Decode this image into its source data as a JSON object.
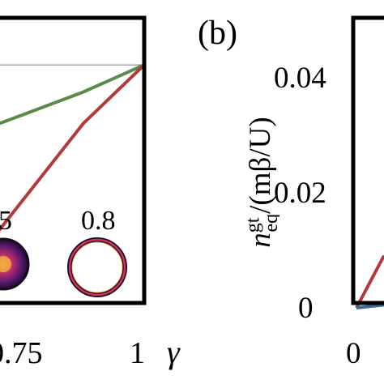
{
  "chart_data": [
    {
      "type": "line",
      "xlabel": "γ",
      "x_ticks": [
        "0.75",
        "1"
      ],
      "series": [
        {
          "color": "#5b8a4a",
          "x": [
            0.75,
            0.875,
            1.0
          ],
          "y": [
            0.66,
            0.74,
            0.835
          ]
        },
        {
          "color": "#b13a3a",
          "x": [
            0.75,
            0.875,
            1.0
          ],
          "y": [
            0.36,
            0.63,
            0.835
          ]
        },
        {
          "color": "#777777",
          "x": [
            0.75,
            1.0
          ],
          "y": [
            0.835,
            0.835
          ]
        }
      ],
      "insets": [
        {
          "label": "5",
          "type": "filled-ring"
        },
        {
          "label": "0.8",
          "type": "thin-ring"
        }
      ]
    },
    {
      "type": "line",
      "panel_label": "(b)",
      "ylabel_html": "n<sup>gt</sup><sub>eq</sub>/(mβ/U)",
      "y_ticks": [
        "0",
        "0.02",
        "0.04"
      ],
      "y_tick_values": [
        0,
        0.02,
        0.04
      ],
      "x_ticks": [
        "0"
      ],
      "series": [
        {
          "color": "#b13a3a",
          "x": [
            0,
            0.3
          ],
          "y": [
            0,
            0.009
          ]
        },
        {
          "color": "#3b6aa0",
          "x": [
            0,
            0.3
          ],
          "y": [
            0,
            0.0005
          ]
        }
      ]
    }
  ]
}
